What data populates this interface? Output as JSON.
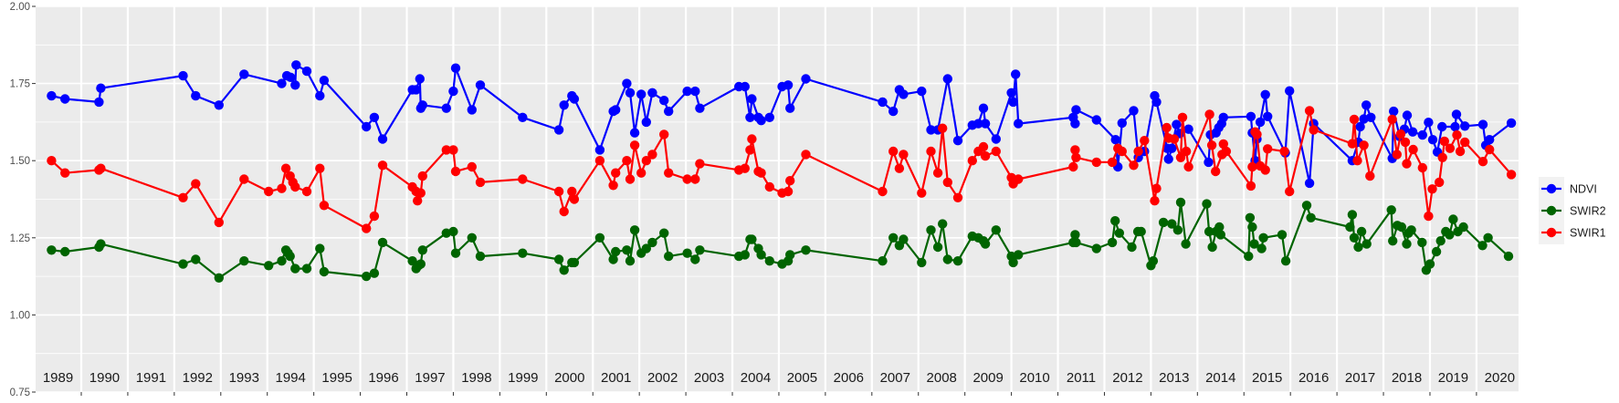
{
  "chart_data": {
    "type": "line",
    "title": "",
    "xlabel": "",
    "ylabel": "",
    "xlim": [
      1988.99,
      2020.87
    ],
    "ylim": [
      0.75,
      2.0
    ],
    "y_ticks": [
      "0.75",
      "1.00",
      "1.25",
      "1.50",
      "1.75",
      "2.00"
    ],
    "y_tick_values": [
      0.75,
      1.0,
      1.25,
      1.5,
      1.75,
      2.0
    ],
    "year_labels": [
      "1989",
      "1990",
      "1991",
      "1992",
      "1993",
      "1994",
      "1995",
      "1996",
      "1997",
      "1998",
      "1999",
      "2000",
      "2001",
      "2002",
      "2003",
      "2004",
      "2005",
      "2006",
      "2007",
      "2008",
      "2009",
      "2010",
      "2011",
      "2012",
      "2013",
      "2014",
      "2015",
      "2016",
      "2017",
      "2018",
      "2019",
      "2020"
    ],
    "grid": true,
    "legend_position": "right",
    "series": [
      {
        "name": "NDVI",
        "color": "#0000FF",
        "t": [
          1989.36,
          1989.65,
          1990.38,
          1990.42,
          1992.19,
          1992.46,
          1992.96,
          1993.5,
          1994.31,
          1994.42,
          1994.5,
          1994.6,
          1994.62,
          1994.85,
          1995.13,
          1995.22,
          1996.13,
          1996.3,
          1996.48,
          1997.12,
          1997.2,
          1997.28,
          1997.3,
          1997.34,
          1997.85,
          1998.0,
          1998.05,
          1998.4,
          1998.58,
          1999.49,
          2000.27,
          2000.38,
          2000.55,
          2000.6,
          2001.15,
          2001.44,
          2001.49,
          2001.73,
          2001.8,
          2001.9,
          2002.04,
          2002.15,
          2002.28,
          2002.53,
          2002.63,
          2003.03,
          2003.2,
          2003.3,
          2004.14,
          2004.27,
          2004.38,
          2004.42,
          2004.56,
          2004.62,
          2004.8,
          2005.07,
          2005.2,
          2005.24,
          2005.58,
          2007.23,
          2007.46,
          2007.59,
          2007.68,
          2008.07,
          2008.27,
          2008.42,
          2008.63,
          2008.85,
          2009.16,
          2009.29,
          2009.4,
          2009.44,
          2009.67,
          2010.0,
          2010.04,
          2010.09,
          2010.15,
          2011.33,
          2011.37,
          2011.39,
          2011.83,
          2012.24,
          2012.29,
          2012.38,
          2012.63,
          2012.73,
          2012.86,
          2013.08,
          2013.12,
          2013.35,
          2013.38,
          2013.45,
          2013.55,
          2013.62,
          2013.81,
          2014.24,
          2014.28,
          2014.4,
          2014.46,
          2014.52,
          2014.56,
          2015.15,
          2015.18,
          2015.24,
          2015.28,
          2015.35,
          2015.46,
          2015.51,
          2015.89,
          2015.98,
          2016.41,
          2016.5,
          2017.33,
          2017.46,
          2017.5,
          2017.58,
          2017.63,
          2017.73,
          2018.19,
          2018.22,
          2018.35,
          2018.45,
          2018.51,
          2018.63,
          2018.84,
          2018.97,
          2019.06,
          2019.16,
          2019.26,
          2019.54,
          2019.57,
          2019.75,
          2020.14,
          2020.2,
          2020.28,
          2020.75
        ],
        "values": [
          1.71,
          1.7,
          1.69,
          1.735,
          1.775,
          1.71,
          1.68,
          1.78,
          1.75,
          1.775,
          1.77,
          1.745,
          1.81,
          1.79,
          1.71,
          1.76,
          1.61,
          1.64,
          1.57,
          1.73,
          1.73,
          1.765,
          1.67,
          1.68,
          1.67,
          1.725,
          1.8,
          1.665,
          1.745,
          1.64,
          1.6,
          1.68,
          1.71,
          1.7,
          1.535,
          1.66,
          1.665,
          1.75,
          1.72,
          1.59,
          1.715,
          1.625,
          1.72,
          1.695,
          1.66,
          1.725,
          1.725,
          1.67,
          1.74,
          1.74,
          1.64,
          1.7,
          1.64,
          1.63,
          1.64,
          1.74,
          1.745,
          1.67,
          1.765,
          1.69,
          1.66,
          1.73,
          1.715,
          1.725,
          1.6,
          1.6,
          1.765,
          1.565,
          1.615,
          1.62,
          1.67,
          1.62,
          1.57,
          1.72,
          1.69,
          1.78,
          1.62,
          1.64,
          1.62,
          1.665,
          1.632,
          1.568,
          1.48,
          1.622,
          1.662,
          1.51,
          1.53,
          1.71,
          1.69,
          1.54,
          1.505,
          1.54,
          1.617,
          1.588,
          1.602,
          1.495,
          1.584,
          1.59,
          1.607,
          1.62,
          1.64,
          1.643,
          1.59,
          1.5,
          1.57,
          1.625,
          1.714,
          1.643,
          1.525,
          1.726,
          1.427,
          1.62,
          1.5,
          1.56,
          1.61,
          1.635,
          1.68,
          1.64,
          1.507,
          1.66,
          1.578,
          1.602,
          1.647,
          1.593,
          1.583,
          1.624,
          1.568,
          1.528,
          1.61,
          1.61,
          1.65,
          1.612,
          1.617,
          1.55,
          1.568,
          1.622
        ]
      },
      {
        "name": "SWIR2",
        "color": "#006400",
        "t": [
          1989.36,
          1989.65,
          1990.38,
          1990.42,
          1992.19,
          1992.46,
          1992.96,
          1993.5,
          1994.03,
          1994.31,
          1994.4,
          1994.45,
          1994.49,
          1994.6,
          1994.85,
          1995.13,
          1995.22,
          1996.13,
          1996.3,
          1996.48,
          1997.12,
          1997.2,
          1997.25,
          1997.3,
          1997.34,
          1997.85,
          1998.0,
          1998.05,
          1998.4,
          1998.58,
          1999.49,
          2000.27,
          2000.38,
          2000.55,
          2000.6,
          2001.15,
          2001.44,
          2001.49,
          2001.73,
          2001.8,
          2001.9,
          2002.04,
          2002.15,
          2002.28,
          2002.53,
          2002.63,
          2003.03,
          2003.2,
          2003.3,
          2004.14,
          2004.27,
          2004.38,
          2004.42,
          2004.56,
          2004.62,
          2004.8,
          2005.07,
          2005.2,
          2005.24,
          2005.58,
          2007.23,
          2007.46,
          2007.59,
          2007.68,
          2008.07,
          2008.27,
          2008.42,
          2008.52,
          2008.63,
          2008.85,
          2009.16,
          2009.29,
          2009.4,
          2009.44,
          2009.67,
          2010.0,
          2010.04,
          2010.15,
          2011.33,
          2011.37,
          2011.39,
          2011.83,
          2012.17,
          2012.23,
          2012.32,
          2012.59,
          2012.72,
          2012.79,
          2013.0,
          2013.05,
          2013.27,
          2013.45,
          2013.58,
          2013.64,
          2013.75,
          2014.2,
          2014.25,
          2014.32,
          2014.4,
          2014.47,
          2014.5,
          2015.1,
          2015.13,
          2015.18,
          2015.22,
          2015.38,
          2015.42,
          2015.82,
          2015.9,
          2016.35,
          2016.44,
          2017.28,
          2017.33,
          2017.37,
          2017.46,
          2017.53,
          2017.64,
          2018.17,
          2018.2,
          2018.3,
          2018.39,
          2018.5,
          2018.54,
          2018.6,
          2018.83,
          2018.92,
          2019.0,
          2019.14,
          2019.23,
          2019.34,
          2019.42,
          2019.5,
          2019.6,
          2019.72,
          2020.13,
          2020.25,
          2020.69
        ],
        "values": [
          1.21,
          1.205,
          1.22,
          1.23,
          1.165,
          1.18,
          1.12,
          1.175,
          1.16,
          1.175,
          1.21,
          1.2,
          1.19,
          1.15,
          1.15,
          1.215,
          1.14,
          1.125,
          1.135,
          1.235,
          1.175,
          1.15,
          1.16,
          1.165,
          1.21,
          1.265,
          1.27,
          1.2,
          1.25,
          1.19,
          1.2,
          1.18,
          1.145,
          1.17,
          1.17,
          1.25,
          1.18,
          1.205,
          1.21,
          1.175,
          1.275,
          1.2,
          1.215,
          1.235,
          1.265,
          1.19,
          1.2,
          1.18,
          1.21,
          1.19,
          1.195,
          1.245,
          1.245,
          1.215,
          1.195,
          1.175,
          1.165,
          1.175,
          1.195,
          1.21,
          1.175,
          1.25,
          1.225,
          1.245,
          1.17,
          1.275,
          1.22,
          1.295,
          1.18,
          1.175,
          1.255,
          1.25,
          1.24,
          1.23,
          1.275,
          1.19,
          1.17,
          1.195,
          1.235,
          1.26,
          1.235,
          1.215,
          1.235,
          1.305,
          1.265,
          1.22,
          1.27,
          1.27,
          1.16,
          1.175,
          1.3,
          1.295,
          1.275,
          1.365,
          1.23,
          1.36,
          1.27,
          1.22,
          1.27,
          1.285,
          1.26,
          1.19,
          1.315,
          1.285,
          1.23,
          1.215,
          1.25,
          1.26,
          1.175,
          1.355,
          1.315,
          1.285,
          1.325,
          1.25,
          1.22,
          1.27,
          1.23,
          1.34,
          1.24,
          1.29,
          1.285,
          1.23,
          1.265,
          1.275,
          1.235,
          1.145,
          1.165,
          1.205,
          1.24,
          1.27,
          1.26,
          1.31,
          1.27,
          1.285,
          1.225,
          1.25,
          1.19
        ]
      },
      {
        "name": "SWIR1",
        "color": "#FF0000",
        "t": [
          1989.36,
          1989.65,
          1990.38,
          1990.42,
          1992.19,
          1992.46,
          1992.96,
          1993.5,
          1994.03,
          1994.31,
          1994.4,
          1994.49,
          1994.55,
          1994.6,
          1994.85,
          1995.13,
          1995.22,
          1996.13,
          1996.3,
          1996.48,
          1997.12,
          1997.2,
          1997.23,
          1997.3,
          1997.34,
          1997.85,
          1998.0,
          1998.05,
          1998.4,
          1998.58,
          1999.49,
          2000.27,
          2000.38,
          2000.55,
          2000.6,
          2001.15,
          2001.44,
          2001.49,
          2001.73,
          2001.8,
          2001.9,
          2002.04,
          2002.15,
          2002.28,
          2002.53,
          2002.63,
          2003.03,
          2003.2,
          2003.3,
          2004.14,
          2004.27,
          2004.38,
          2004.42,
          2004.56,
          2004.62,
          2004.8,
          2005.07,
          2005.2,
          2005.24,
          2005.58,
          2007.23,
          2007.46,
          2007.59,
          2007.68,
          2008.07,
          2008.27,
          2008.42,
          2008.52,
          2008.63,
          2008.85,
          2009.16,
          2009.29,
          2009.4,
          2009.44,
          2009.67,
          2010.0,
          2010.04,
          2010.15,
          2011.33,
          2011.37,
          2011.39,
          2011.83,
          2012.17,
          2012.29,
          2012.38,
          2012.63,
          2012.73,
          2012.86,
          2013.08,
          2013.12,
          2013.34,
          2013.38,
          2013.5,
          2013.64,
          2013.68,
          2013.76,
          2013.81,
          2014.26,
          2014.31,
          2014.39,
          2014.53,
          2014.56,
          2014.62,
          2015.15,
          2015.18,
          2015.24,
          2015.28,
          2015.35,
          2015.46,
          2015.51,
          2015.87,
          2015.98,
          2016.41,
          2016.5,
          2017.33,
          2017.37,
          2017.44,
          2017.58,
          2017.71,
          2018.19,
          2018.29,
          2018.37,
          2018.47,
          2018.5,
          2018.64,
          2018.84,
          2018.97,
          2019.05,
          2019.2,
          2019.27,
          2019.31,
          2019.43,
          2019.58,
          2019.65,
          2019.75,
          2020.14,
          2020.28,
          2020.75
        ],
        "values": [
          1.5,
          1.46,
          1.47,
          1.475,
          1.38,
          1.425,
          1.3,
          1.44,
          1.4,
          1.41,
          1.475,
          1.45,
          1.43,
          1.415,
          1.4,
          1.475,
          1.355,
          1.28,
          1.32,
          1.485,
          1.415,
          1.4,
          1.37,
          1.395,
          1.45,
          1.535,
          1.535,
          1.465,
          1.48,
          1.43,
          1.44,
          1.4,
          1.335,
          1.4,
          1.375,
          1.5,
          1.42,
          1.46,
          1.5,
          1.44,
          1.55,
          1.46,
          1.5,
          1.52,
          1.585,
          1.46,
          1.44,
          1.44,
          1.49,
          1.47,
          1.475,
          1.535,
          1.57,
          1.465,
          1.46,
          1.415,
          1.395,
          1.4,
          1.435,
          1.52,
          1.4,
          1.53,
          1.475,
          1.52,
          1.395,
          1.53,
          1.46,
          1.605,
          1.43,
          1.38,
          1.5,
          1.53,
          1.545,
          1.515,
          1.53,
          1.445,
          1.425,
          1.44,
          1.48,
          1.535,
          1.51,
          1.495,
          1.495,
          1.54,
          1.53,
          1.485,
          1.53,
          1.565,
          1.37,
          1.41,
          1.607,
          1.573,
          1.57,
          1.51,
          1.64,
          1.53,
          1.48,
          1.65,
          1.55,
          1.465,
          1.52,
          1.554,
          1.53,
          1.418,
          1.48,
          1.593,
          1.585,
          1.483,
          1.47,
          1.538,
          1.53,
          1.4,
          1.662,
          1.6,
          1.555,
          1.634,
          1.5,
          1.55,
          1.45,
          1.634,
          1.52,
          1.586,
          1.56,
          1.49,
          1.536,
          1.477,
          1.32,
          1.408,
          1.43,
          1.51,
          1.563,
          1.54,
          1.583,
          1.53,
          1.56,
          1.497,
          1.536,
          1.455
        ]
      }
    ]
  }
}
